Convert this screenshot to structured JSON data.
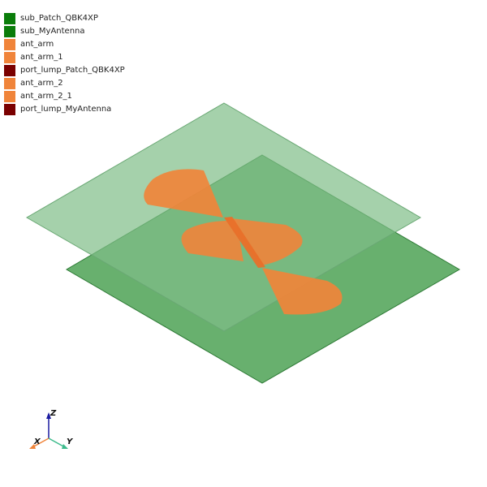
{
  "legend": {
    "items": [
      {
        "label": "sub_Patch_QBK4XP",
        "color": "#0a7d0a"
      },
      {
        "label": "sub_MyAntenna",
        "color": "#0a7d0a"
      },
      {
        "label": "ant_arm",
        "color": "#f0843a"
      },
      {
        "label": "ant_arm_1",
        "color": "#f0843a"
      },
      {
        "label": "port_lump_Patch_QBK4XP",
        "color": "#7a0000"
      },
      {
        "label": "ant_arm_2",
        "color": "#f0843a"
      },
      {
        "label": "ant_arm_2_1",
        "color": "#f0843a"
      },
      {
        "label": "port_lump_MyAntenna",
        "color": "#7a0000"
      }
    ]
  },
  "axes": {
    "x_label": "X",
    "y_label": "Y",
    "z_label": "Z",
    "x_color": "#f0843a",
    "y_color": "#3dbb8c",
    "z_color": "#1a1aa0"
  },
  "scene": {
    "substrate_top_color": "#8fc79a",
    "substrate_bottom_color": "#3d9a45",
    "arm_color": "#f0843a"
  }
}
